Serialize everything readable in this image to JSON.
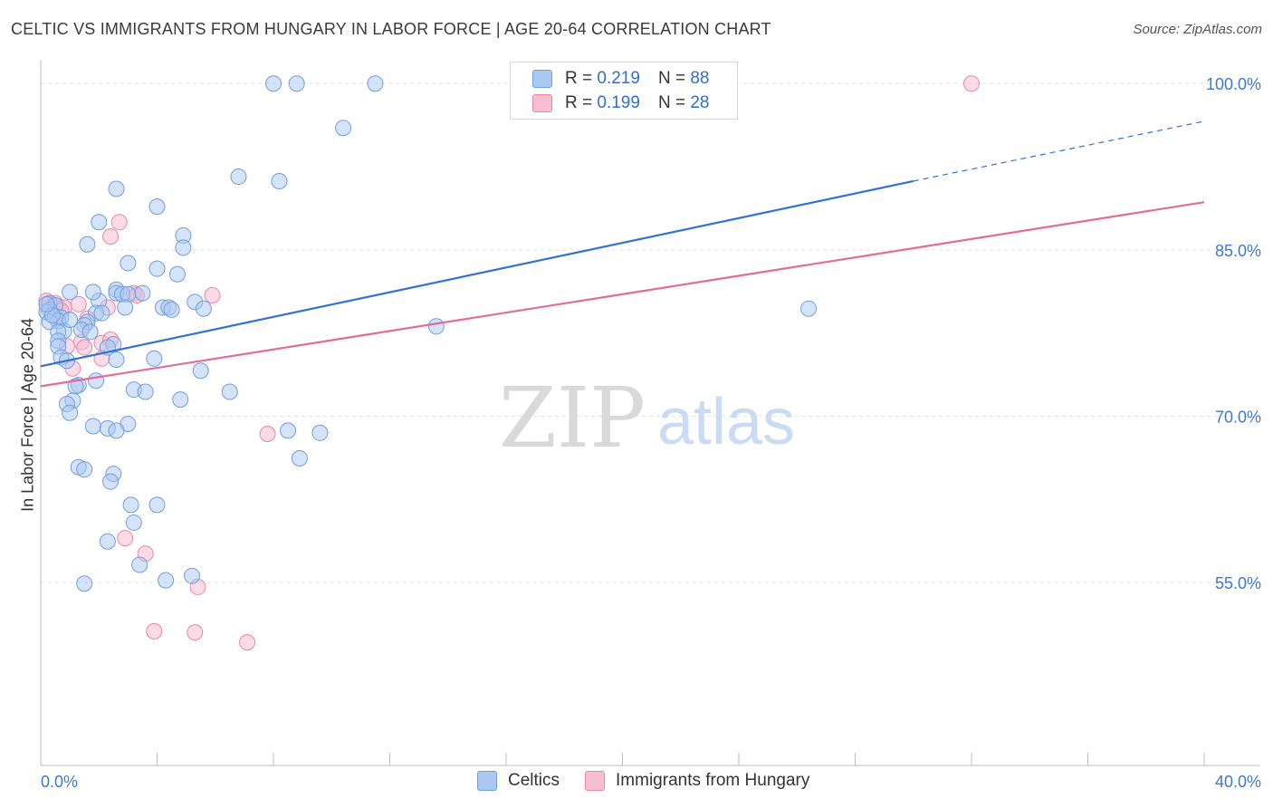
{
  "title": "CELTIC VS IMMIGRANTS FROM HUNGARY IN LABOR FORCE | AGE 20-64 CORRELATION CHART",
  "source": "Source: ZipAtlas.com",
  "watermark": {
    "part1": "ZIP",
    "part2": "atlas"
  },
  "colors": {
    "blue_fill": "#a9c8f2",
    "blue_stroke": "#6f9ee0",
    "blue_line": "#2f72d4",
    "pink_fill": "#f7bdd0",
    "pink_stroke": "#ea87a8",
    "pink_line": "#e36b97",
    "tick_label": "#3f78d0",
    "grid": "#e3e3e3"
  },
  "legend": {
    "rows": [
      {
        "r_label": "R =",
        "r_value": "0.219",
        "n_label": "N =",
        "n_value": "88"
      },
      {
        "r_label": "R =",
        "r_value": "0.199",
        "n_label": "N =",
        "n_value": "28"
      }
    ]
  },
  "chart_data": {
    "type": "scatter",
    "ylabel": "In Labor Force | Age 20-64",
    "xlabel": "",
    "xlim": [
      0,
      40
    ],
    "ylim": [
      38.5,
      101
    ],
    "x_tick_labels": [
      "0.0%",
      "40.0%"
    ],
    "y_ticks": [
      {
        "value": 100,
        "label": "100.0%"
      },
      {
        "value": 85,
        "label": "85.0%"
      },
      {
        "value": 70,
        "label": "70.0%"
      },
      {
        "value": 55,
        "label": "55.0%"
      }
    ],
    "series": [
      {
        "name": "Celtics",
        "trend": {
          "x0": 0,
          "y0": 74.5,
          "x1": 30,
          "y1": 91.2,
          "dash_to_x": 40,
          "dash_to_y": 96.6
        },
        "points": [
          [
            8,
            100
          ],
          [
            8.8,
            100
          ],
          [
            11.5,
            100
          ],
          [
            10.4,
            96
          ],
          [
            6.8,
            91.6
          ],
          [
            8.2,
            91.2
          ],
          [
            2.6,
            90.5
          ],
          [
            4,
            88.9
          ],
          [
            2,
            87.5
          ],
          [
            4.9,
            86.3
          ],
          [
            1.6,
            85.5
          ],
          [
            4.9,
            85.2
          ],
          [
            3,
            83.8
          ],
          [
            4,
            83.3
          ],
          [
            4.7,
            82.8
          ],
          [
            2.6,
            81.4
          ],
          [
            1,
            81.2
          ],
          [
            2.6,
            81.1
          ],
          [
            2.8,
            81
          ],
          [
            3,
            81
          ],
          [
            2,
            80.4
          ],
          [
            5.3,
            80.3
          ],
          [
            0.3,
            80.2
          ],
          [
            0.5,
            80
          ],
          [
            4.2,
            79.8
          ],
          [
            4.4,
            79.8
          ],
          [
            5.6,
            79.7
          ],
          [
            2.9,
            79.8
          ],
          [
            0.3,
            79.6
          ],
          [
            26.4,
            79.7
          ],
          [
            0.2,
            79.4
          ],
          [
            1.9,
            79.3
          ],
          [
            0.5,
            79
          ],
          [
            0.7,
            78.9
          ],
          [
            0.6,
            78.6
          ],
          [
            0.3,
            78.5
          ],
          [
            1.6,
            78.5
          ],
          [
            1.5,
            78.2
          ],
          [
            13.6,
            78.1
          ],
          [
            1.4,
            77.8
          ],
          [
            0.8,
            77.7
          ],
          [
            0.6,
            77.6
          ],
          [
            1.7,
            77.6
          ],
          [
            0.6,
            76.8
          ],
          [
            2.5,
            76.5
          ],
          [
            0.6,
            76.3
          ],
          [
            2.3,
            76.2
          ],
          [
            0.7,
            75.3
          ],
          [
            2.6,
            75.1
          ],
          [
            3.9,
            75.2
          ],
          [
            0.9,
            75
          ],
          [
            5.5,
            74.1
          ],
          [
            1.9,
            73.2
          ],
          [
            1.3,
            72.8
          ],
          [
            1.2,
            72.7
          ],
          [
            3.2,
            72.4
          ],
          [
            3.6,
            72.2
          ],
          [
            6.5,
            72.2
          ],
          [
            4.8,
            71.5
          ],
          [
            1.1,
            71.4
          ],
          [
            0.9,
            71.1
          ],
          [
            1,
            70.3
          ],
          [
            3,
            69.3
          ],
          [
            1.8,
            69.1
          ],
          [
            2.3,
            68.9
          ],
          [
            2.6,
            68.7
          ],
          [
            8.5,
            68.7
          ],
          [
            9.6,
            68.5
          ],
          [
            8.9,
            66.2
          ],
          [
            1.3,
            65.4
          ],
          [
            1.5,
            65.2
          ],
          [
            2.5,
            64.8
          ],
          [
            2.4,
            64.1
          ],
          [
            3.1,
            62
          ],
          [
            4,
            62
          ],
          [
            3.2,
            60.4
          ],
          [
            2.3,
            58.7
          ],
          [
            3.4,
            56.6
          ],
          [
            5.2,
            55.6
          ],
          [
            4.3,
            55.2
          ],
          [
            1.5,
            54.9
          ],
          [
            4.5,
            79.6
          ],
          [
            0.4,
            79.1
          ],
          [
            2.1,
            79.3
          ],
          [
            1,
            78.7
          ],
          [
            3.5,
            81.1
          ],
          [
            0.2,
            80.1
          ],
          [
            1.8,
            81.2
          ]
        ]
      },
      {
        "name": "Immigrants from Hungary",
        "trend": {
          "x0": 0,
          "y0": 72.7,
          "x1": 40,
          "y1": 89.3
        },
        "points": [
          [
            32,
            100
          ],
          [
            2.7,
            87.5
          ],
          [
            2.4,
            86.2
          ],
          [
            5.9,
            80.9
          ],
          [
            3.2,
            81.1
          ],
          [
            3.3,
            80.9
          ],
          [
            0.2,
            80.4
          ],
          [
            0.5,
            80.2
          ],
          [
            1.3,
            80.1
          ],
          [
            0.6,
            79.9
          ],
          [
            0.8,
            79.8
          ],
          [
            2.3,
            79.8
          ],
          [
            1.6,
            78.8
          ],
          [
            1.4,
            76.7
          ],
          [
            2.1,
            76.6
          ],
          [
            2.4,
            76.9
          ],
          [
            1.5,
            76.2
          ],
          [
            0.9,
            76.3
          ],
          [
            1.1,
            74.3
          ],
          [
            2.1,
            75.2
          ],
          [
            7.8,
            68.4
          ],
          [
            2.9,
            59
          ],
          [
            3.6,
            57.6
          ],
          [
            5.4,
            54.6
          ],
          [
            3.9,
            50.6
          ],
          [
            5.3,
            50.5
          ],
          [
            7.1,
            49.6
          ],
          [
            0.7,
            79.5
          ]
        ]
      }
    ]
  }
}
